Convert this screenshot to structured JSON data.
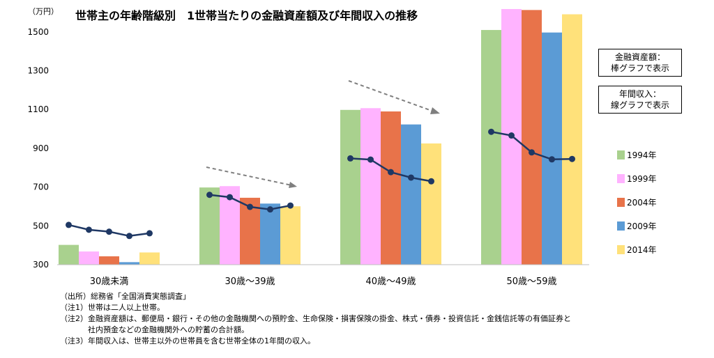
{
  "chart_data": {
    "type": "bar",
    "title": "世帯主の年齢階級別　1世帯当たりの金融資産額及び年間収入の推移",
    "unit_label": "（万円）",
    "ylim": [
      300,
      1600
    ],
    "yticks": [
      300,
      500,
      700,
      900,
      1100,
      1300,
      1500
    ],
    "categories": [
      "30歳未満",
      "30歳～39歳",
      "40歳～49歳",
      "50歳～59歳"
    ],
    "bar_series": [
      {
        "name": "1994年",
        "color": "#a9d18e",
        "values": [
          402,
          698,
          1098,
          1510
        ]
      },
      {
        "name": "1999年",
        "color": "#ffb3ff",
        "values": [
          368,
          705,
          1107,
          1618
        ]
      },
      {
        "name": "2004年",
        "color": "#e8734a",
        "values": [
          343,
          645,
          1090,
          1613
        ]
      },
      {
        "name": "2009年",
        "color": "#5b9bd5",
        "values": [
          313,
          615,
          1023,
          1497
        ]
      },
      {
        "name": "2014年",
        "color": "#ffe17a",
        "values": [
          363,
          601,
          925,
          1591
        ]
      }
    ],
    "line_series": {
      "name": "年間収入",
      "color": "#1f3864",
      "values": [
        [
          505,
          480,
          470,
          448,
          462
        ],
        [
          660,
          648,
          598,
          585,
          605
        ],
        [
          848,
          842,
          777,
          749,
          730
        ],
        [
          985,
          966,
          879,
          843,
          845
        ]
      ]
    }
  },
  "legend_boxes": {
    "assets": [
      "金融資産額：",
      "棒グラフで表示"
    ],
    "income": [
      "年間収入：",
      "線グラフで表示"
    ]
  },
  "notes": [
    "（出所）総務省「全国消費実態調査」",
    "（注1）世帯は二人以上世帯。",
    "（注2）金融資産額は、郵便局・銀行・その他の金融機関への預貯金、生命保険・損害保険の掛金、株式・債券・投資信託・金銭信託等の有価証券と",
    "社内預金などの金融機関外への貯蓄の合計額。",
    "（注3）年間収入は、世帯主以外の世帯員を含む世帯全体の1年間の収入。"
  ]
}
